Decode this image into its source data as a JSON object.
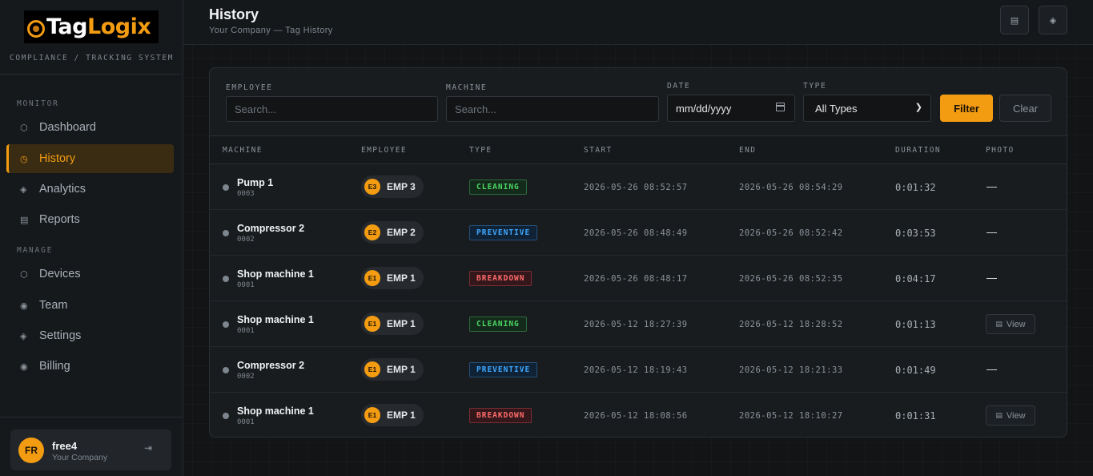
{
  "brand": {
    "name_part1": "Tag",
    "name_part2": "Logix",
    "tagline": "COMPLIANCE / TRACKING SYSTEM"
  },
  "sidebar": {
    "sections": [
      {
        "label": "MONITOR",
        "items": [
          {
            "label": "Dashboard",
            "icon": "hexagon-icon",
            "glyph": "⬡"
          },
          {
            "label": "History",
            "icon": "clock-icon",
            "glyph": "◷",
            "active": true
          },
          {
            "label": "Analytics",
            "icon": "diamond-icon",
            "glyph": "◈"
          },
          {
            "label": "Reports",
            "icon": "list-icon",
            "glyph": "▤"
          }
        ]
      },
      {
        "label": "MANAGE",
        "items": [
          {
            "label": "Devices",
            "icon": "hexagon-icon",
            "glyph": "⬡"
          },
          {
            "label": "Team",
            "icon": "circle-dot-icon",
            "glyph": "◉"
          },
          {
            "label": "Settings",
            "icon": "diamond-icon",
            "glyph": "◈"
          },
          {
            "label": "Billing",
            "icon": "circle-dot-icon",
            "glyph": "◉"
          }
        ]
      }
    ]
  },
  "user": {
    "initials": "FR",
    "name": "free4",
    "company": "Your Company",
    "logout_glyph": "⇥"
  },
  "header": {
    "title": "History",
    "subtitle": "Your Company — Tag History",
    "btn1_glyph": "▤",
    "btn2_glyph": "◈"
  },
  "filters": {
    "employee": {
      "label": "EMPLOYEE",
      "placeholder": "Search..."
    },
    "machine": {
      "label": "MACHINE",
      "placeholder": "Search..."
    },
    "date": {
      "label": "DATE",
      "value": "mm/dd/yyyy"
    },
    "type": {
      "label": "TYPE",
      "value": "All Types"
    },
    "filter_button": "Filter",
    "clear_button": "Clear"
  },
  "table": {
    "columns": [
      "MACHINE",
      "EMPLOYEE",
      "TYPE",
      "START",
      "END",
      "DURATION",
      "PHOTO"
    ],
    "rows": [
      {
        "machine": "Pump 1",
        "code": "0003",
        "emp_badge": "E3",
        "employee": "EMP 3",
        "type": "CLEANING",
        "start": "2026-05-26 08:52:57",
        "end": "2026-05-26 08:54:29",
        "duration": "0:01:32",
        "photo": "—"
      },
      {
        "machine": "Compressor 2",
        "code": "0002",
        "emp_badge": "E2",
        "employee": "EMP 2",
        "type": "PREVENTIVE",
        "start": "2026-05-26 08:48:49",
        "end": "2026-05-26 08:52:42",
        "duration": "0:03:53",
        "photo": "—"
      },
      {
        "machine": "Shop machine 1",
        "code": "0001",
        "emp_badge": "E1",
        "employee": "EMP 1",
        "type": "BREAKDOWN",
        "start": "2026-05-26 08:48:17",
        "end": "2026-05-26 08:52:35",
        "duration": "0:04:17",
        "photo": "—"
      },
      {
        "machine": "Shop machine 1",
        "code": "0001",
        "emp_badge": "E1",
        "employee": "EMP 1",
        "type": "CLEANING",
        "start": "2026-05-12 18:27:39",
        "end": "2026-05-12 18:28:52",
        "duration": "0:01:13",
        "photo": "View"
      },
      {
        "machine": "Compressor 2",
        "code": "0002",
        "emp_badge": "E1",
        "employee": "EMP 1",
        "type": "PREVENTIVE",
        "start": "2026-05-12 18:19:43",
        "end": "2026-05-12 18:21:33",
        "duration": "0:01:49",
        "photo": "—"
      },
      {
        "machine": "Shop machine 1",
        "code": "0001",
        "emp_badge": "E1",
        "employee": "EMP 1",
        "type": "BREAKDOWN",
        "start": "2026-05-12 18:08:56",
        "end": "2026-05-12 18:10:27",
        "duration": "0:01:31",
        "photo": "View"
      }
    ]
  },
  "colors": {
    "accent": "#f39c12",
    "cleaning": "#4cd964",
    "preventive": "#3ea8ff",
    "breakdown": "#ff6b6b"
  }
}
